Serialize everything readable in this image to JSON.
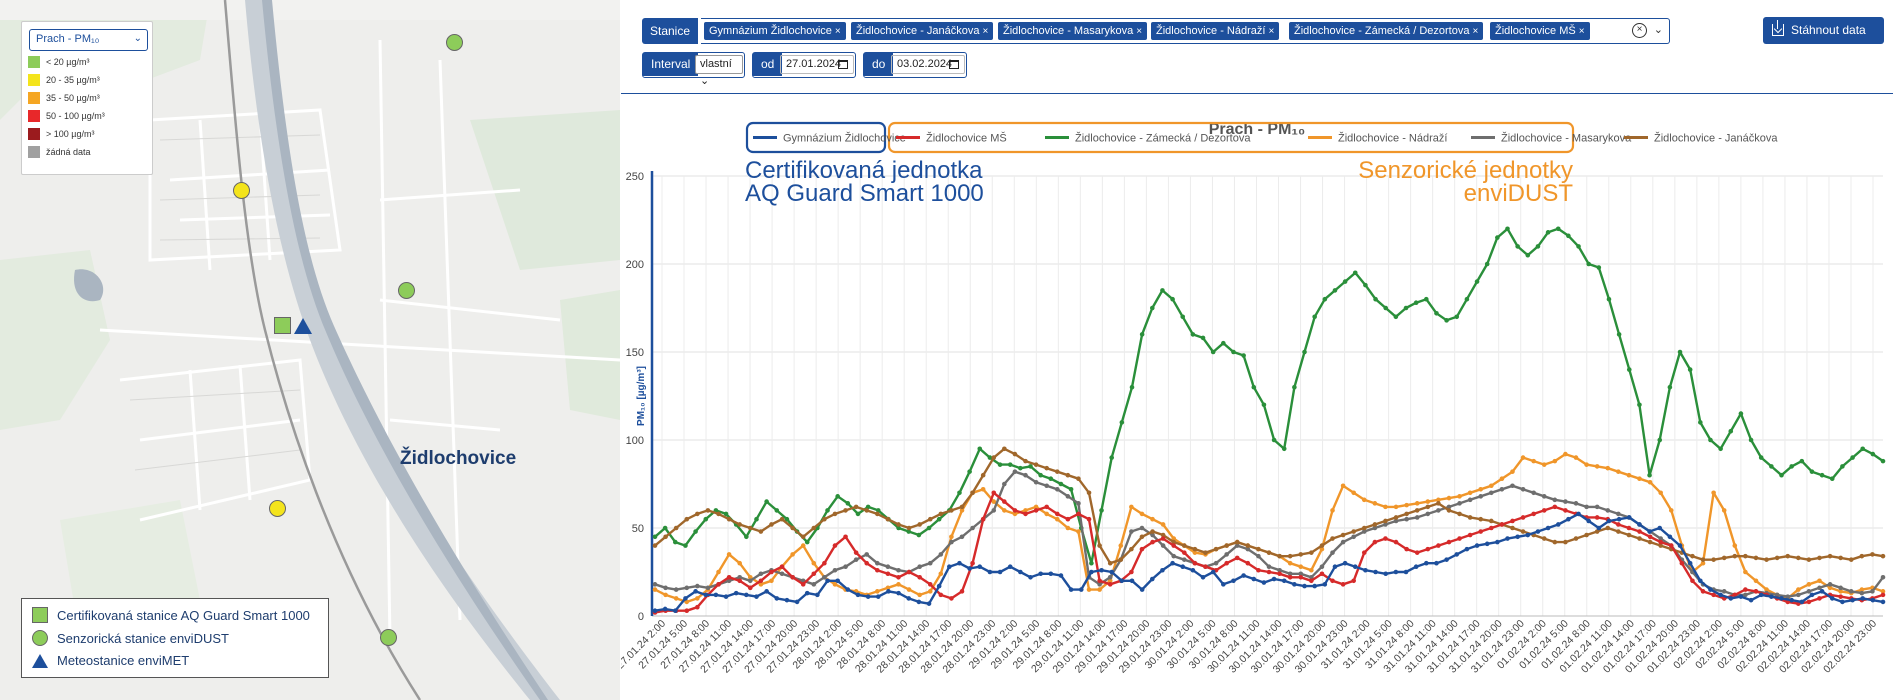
{
  "map": {
    "pollutant_select": "Prach - PM₁₀",
    "color_legend": [
      {
        "label": "< 20 µg/m³",
        "color": "#8dcc5a"
      },
      {
        "label": "20 - 35 µg/m³",
        "color": "#f4e41c"
      },
      {
        "label": "35 - 50 µg/m³",
        "color": "#f5a623"
      },
      {
        "label": "50 - 100 µg/m³",
        "color": "#e8282a"
      },
      {
        "label": "> 100 µg/m³",
        "color": "#9b1b1e"
      },
      {
        "label": "žádná data",
        "color": "#a0a0a0"
      }
    ],
    "town_label": "Židlochovice",
    "station_legend": [
      {
        "label": "Certifikovaná stanice AQ Guard Smart 1000",
        "icon": "green-square-icon"
      },
      {
        "label": "Senzorická stanice enviDUST",
        "icon": "green-circle-icon"
      },
      {
        "label": "Meteostanice enviMET",
        "icon": "blue-triangle-icon"
      }
    ]
  },
  "controls": {
    "stations_label": "Stanice",
    "stations": [
      "Gymnázium Židlochovice",
      "Židlochovice - Janáčkova",
      "Židlochovice - Masarykova",
      "Židlochovice - Nádraží",
      "Židlochovice - Zámecká / Dezortova",
      "Židlochovice MŠ"
    ],
    "chip_remove": "×",
    "download_label": "Stáhnout data",
    "interval_label": "Interval",
    "interval_value": "vlastní",
    "from_label": "od",
    "from_value": "27.01.2024",
    "to_label": "do",
    "to_value": "03.02.2024"
  },
  "chart_data": {
    "type": "line",
    "title": "Prach - PM₁₀",
    "ylabel": "PM₁₀ [µg/m³]",
    "ylim": [
      0,
      250
    ],
    "yticks": [
      0,
      50,
      100,
      150,
      200,
      250
    ],
    "grid": true,
    "legend_position": "top",
    "annotations": [
      {
        "text": "Certifikovaná jednotka\nAQ Guard Smart 1000",
        "color": "#1d4f9c",
        "position": "top-left"
      },
      {
        "text": "Senzorické jednotky\nenviDUST",
        "color": "#f0962a",
        "position": "top-right"
      }
    ],
    "x_tick_labels": [
      "27.01.24 2:00",
      "27.01.24 5:00",
      "27.01.24 8:00",
      "27.01.24 11:00",
      "27.01.24 14:00",
      "27.01.24 17:00",
      "27.01.24 20:00",
      "27.01.24 23:00",
      "28.01.24 2:00",
      "28.01.24 5:00",
      "28.01.24 8:00",
      "28.01.24 11:00",
      "28.01.24 14:00",
      "28.01.24 17:00",
      "28.01.24 20:00",
      "28.01.24 23:00",
      "29.01.24 2:00",
      "29.01.24 5:00",
      "29.01.24 8:00",
      "29.01.24 11:00",
      "29.01.24 14:00",
      "29.01.24 17:00",
      "29.01.24 20:00",
      "29.01.24 23:00",
      "30.01.24 2:00",
      "30.01.24 5:00",
      "30.01.24 8:00",
      "30.01.24 11:00",
      "30.01.24 14:00",
      "30.01.24 17:00",
      "30.01.24 20:00",
      "30.01.24 23:00",
      "31.01.24 2:00",
      "31.01.24 5:00",
      "31.01.24 8:00",
      "31.01.24 11:00",
      "31.01.24 14:00",
      "31.01.24 17:00",
      "31.01.24 20:00",
      "31.01.24 23:00",
      "01.02.24 2:00",
      "01.02.24 5:00",
      "01.02.24 8:00",
      "01.02.24 11:00",
      "01.02.24 14:00",
      "01.02.24 17:00",
      "01.02.24 20:00",
      "01.02.24 23:00",
      "02.02.24 2:00",
      "02.02.24 5:00",
      "02.02.24 8:00",
      "02.02.24 11:00",
      "02.02.24 14:00",
      "02.02.24 17:00",
      "02.02.24 20:00",
      "02.02.24 23:00"
    ],
    "series": [
      {
        "name": "Gymnázium Židlochovice",
        "color": "#1d4f9c",
        "group": "certified",
        "values": [
          3,
          4,
          3,
          10,
          14,
          12,
          12,
          11,
          13,
          12,
          11,
          14,
          10,
          9,
          8,
          13,
          12,
          20,
          20,
          15,
          12,
          11,
          11,
          14,
          13,
          10,
          8,
          7,
          17,
          28,
          30,
          27,
          28,
          25,
          25,
          28,
          25,
          22,
          24,
          24,
          23,
          15,
          15,
          25,
          26,
          25,
          20,
          20,
          15,
          21,
          26,
          30,
          28,
          26,
          22,
          25,
          18,
          20,
          23,
          21,
          19,
          21,
          20,
          18,
          17,
          17,
          18,
          28,
          30,
          28,
          26,
          25,
          24,
          25,
          25,
          28,
          30,
          30,
          32,
          35,
          38,
          40,
          41,
          42,
          44,
          45,
          46,
          48,
          50,
          52,
          55,
          58,
          54,
          50,
          54,
          55,
          56,
          52,
          48,
          50,
          45,
          40,
          30,
          20,
          15,
          12,
          10,
          11,
          9,
          12,
          11,
          10,
          9,
          8,
          12,
          14,
          10,
          8,
          9,
          10,
          9,
          8
        ]
      },
      {
        "name": "Židlochovice MŠ",
        "color": "#d62a2a",
        "group": "sensor",
        "values": [
          2,
          3,
          3,
          3,
          5,
          12,
          18,
          22,
          20,
          16,
          20,
          25,
          28,
          22,
          18,
          24,
          30,
          40,
          45,
          36,
          30,
          26,
          24,
          22,
          25,
          22,
          18,
          12,
          10,
          14,
          30,
          55,
          70,
          65,
          60,
          58,
          60,
          62,
          58,
          55,
          58,
          55,
          20,
          18,
          20,
          25,
          38,
          42,
          44,
          40,
          36,
          30,
          28,
          26,
          30,
          33,
          30,
          26,
          25,
          24,
          22,
          22,
          20,
          24,
          20,
          18,
          20,
          36,
          42,
          44,
          42,
          38,
          36,
          38,
          40,
          42,
          44,
          46,
          48,
          50,
          52,
          54,
          56,
          58,
          60,
          62,
          60,
          58,
          56,
          56,
          55,
          52,
          50,
          48,
          45,
          42,
          40,
          30,
          20,
          14,
          12,
          10,
          12,
          15,
          14,
          12,
          10,
          8,
          7,
          8,
          10,
          12,
          11,
          10,
          9,
          10,
          12
        ]
      },
      {
        "name": "Židlochovice - Zámecká / Dezortova",
        "color": "#2a8f3a",
        "group": "sensor",
        "values": [
          45,
          50,
          42,
          40,
          48,
          55,
          60,
          58,
          52,
          45,
          55,
          65,
          60,
          55,
          48,
          42,
          50,
          60,
          68,
          64,
          58,
          62,
          60,
          55,
          50,
          48,
          46,
          50,
          55,
          60,
          70,
          82,
          95,
          90,
          86,
          86,
          84,
          85,
          80,
          78,
          75,
          72,
          50,
          30,
          60,
          90,
          110,
          130,
          160,
          175,
          185,
          180,
          170,
          160,
          158,
          150,
          155,
          150,
          148,
          130,
          120,
          100,
          95,
          130,
          150,
          170,
          180,
          185,
          190,
          195,
          188,
          180,
          175,
          170,
          175,
          178,
          180,
          172,
          168,
          170,
          180,
          190,
          200,
          215,
          220,
          210,
          205,
          210,
          218,
          220,
          216,
          210,
          200,
          198,
          180,
          160,
          140,
          120,
          80,
          100,
          130,
          150,
          140,
          110,
          100,
          95,
          105,
          115,
          100,
          90,
          85,
          80,
          85,
          88,
          82,
          80,
          78,
          85,
          90,
          95,
          92,
          88
        ]
      },
      {
        "name": "Židlochovice - Nádraží",
        "color": "#f0962a",
        "group": "sensor",
        "values": [
          15,
          12,
          10,
          8,
          10,
          15,
          25,
          35,
          30,
          22,
          18,
          20,
          28,
          35,
          40,
          30,
          22,
          18,
          15,
          14,
          12,
          14,
          16,
          18,
          15,
          12,
          14,
          24,
          45,
          60,
          70,
          72,
          65,
          60,
          58,
          60,
          62,
          58,
          55,
          50,
          48,
          15,
          15,
          20,
          40,
          62,
          58,
          55,
          52,
          44,
          40,
          36,
          35,
          38,
          40,
          42,
          40,
          38,
          36,
          34,
          30,
          28,
          26,
          38,
          60,
          74,
          70,
          66,
          64,
          62,
          62,
          63,
          64,
          65,
          66,
          67,
          68,
          70,
          72,
          74,
          78,
          82,
          90,
          88,
          86,
          88,
          92,
          90,
          86,
          85,
          84,
          82,
          80,
          78,
          76,
          70,
          60,
          40,
          25,
          30,
          70,
          60,
          40,
          25,
          20,
          15,
          12,
          10,
          15,
          18,
          20,
          16,
          14,
          13,
          15,
          16,
          14
        ]
      },
      {
        "name": "Židlochovice - Masarykova",
        "color": "#6e6e6e",
        "group": "sensor",
        "values": [
          18,
          16,
          15,
          16,
          17,
          16,
          18,
          20,
          22,
          20,
          24,
          26,
          24,
          22,
          20,
          18,
          22,
          26,
          28,
          32,
          35,
          30,
          28,
          26,
          25,
          28,
          30,
          35,
          42,
          45,
          50,
          55,
          60,
          75,
          82,
          80,
          76,
          74,
          72,
          68,
          64,
          22,
          18,
          22,
          32,
          48,
          50,
          46,
          40,
          34,
          32,
          30,
          28,
          30,
          35,
          40,
          38,
          34,
          28,
          26,
          24,
          24,
          22,
          28,
          36,
          42,
          45,
          48,
          50,
          52,
          54,
          55,
          56,
          58,
          60,
          62,
          64,
          66,
          68,
          70,
          72,
          74,
          72,
          70,
          68,
          66,
          65,
          64,
          62,
          62,
          60,
          58,
          56,
          52,
          48,
          44,
          40,
          32,
          25,
          18,
          15,
          14,
          12,
          12,
          14,
          13,
          12,
          11,
          12,
          14,
          16,
          18,
          16,
          14,
          13,
          14,
          22
        ]
      },
      {
        "name": "Židlochovice - Janáčkova",
        "color": "#a0672b",
        "group": "sensor",
        "values": [
          40,
          45,
          50,
          55,
          58,
          60,
          58,
          55,
          52,
          50,
          48,
          52,
          55,
          50,
          45,
          50,
          55,
          58,
          60,
          62,
          60,
          58,
          55,
          52,
          50,
          52,
          55,
          58,
          60,
          62,
          70,
          80,
          90,
          95,
          92,
          88,
          86,
          84,
          82,
          80,
          78,
          70,
          40,
          30,
          32,
          38,
          45,
          48,
          46,
          42,
          40,
          38,
          36,
          38,
          40,
          42,
          40,
          38,
          36,
          34,
          34,
          35,
          36,
          40,
          44,
          46,
          48,
          50,
          52,
          54,
          56,
          58,
          60,
          62,
          64,
          60,
          58,
          56,
          55,
          54,
          52,
          50,
          48,
          46,
          44,
          42,
          42,
          44,
          46,
          48,
          50,
          48,
          46,
          44,
          42,
          40,
          38,
          36,
          34,
          32,
          32,
          33,
          34,
          34,
          33,
          32,
          33,
          34,
          33,
          32,
          33,
          34,
          33,
          32,
          34,
          35,
          34
        ]
      }
    ]
  }
}
